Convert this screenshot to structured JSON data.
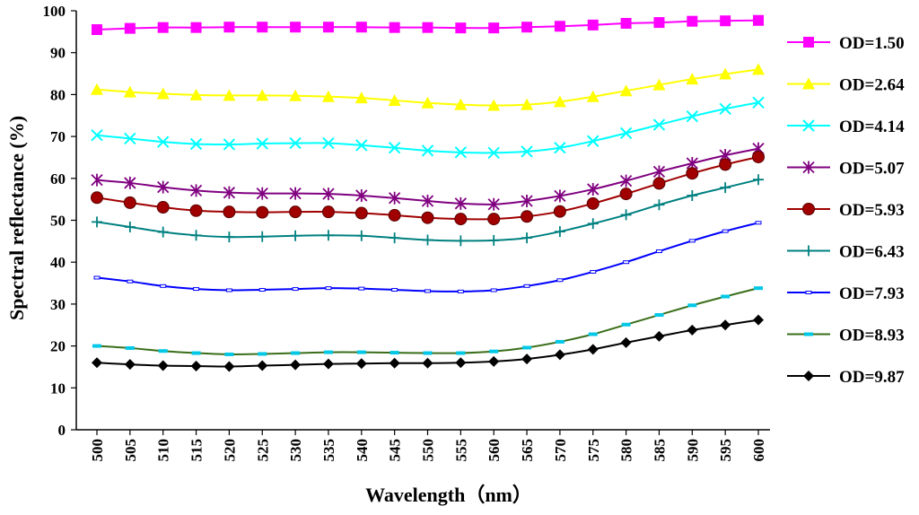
{
  "chart_data": {
    "type": "line",
    "title": "",
    "xlabel": "Wavelength（nm）",
    "ylabel": "Spectral reflectance (%)",
    "xlim": [
      500,
      600
    ],
    "ylim": [
      0,
      100
    ],
    "x": [
      500,
      505,
      510,
      515,
      520,
      525,
      530,
      535,
      540,
      545,
      550,
      555,
      560,
      565,
      570,
      575,
      580,
      585,
      590,
      595,
      600
    ],
    "x_ticks": [
      "500",
      "505",
      "510",
      "515",
      "520",
      "525",
      "530",
      "535",
      "540",
      "545",
      "550",
      "555",
      "560",
      "565",
      "570",
      "575",
      "580",
      "585",
      "590",
      "595",
      "600"
    ],
    "y_ticks": [
      "0",
      "10",
      "20",
      "30",
      "40",
      "50",
      "60",
      "70",
      "80",
      "90",
      "100"
    ],
    "grid": false,
    "legend_position": "right",
    "series": [
      {
        "name": "OD=1.50",
        "color": "#ff00ff",
        "marker": "square",
        "values": [
          95.5,
          95.8,
          96.0,
          96.0,
          96.1,
          96.1,
          96.1,
          96.1,
          96.1,
          96.0,
          96.0,
          95.9,
          95.9,
          96.1,
          96.3,
          96.6,
          97.0,
          97.2,
          97.5,
          97.6,
          97.7
        ]
      },
      {
        "name": "OD=2.64",
        "color": "#ffff00",
        "marker": "triangle",
        "values": [
          81.2,
          80.6,
          80.2,
          79.9,
          79.8,
          79.8,
          79.7,
          79.5,
          79.2,
          78.6,
          78.0,
          77.6,
          77.4,
          77.6,
          78.3,
          79.5,
          80.9,
          82.3,
          83.7,
          84.9,
          86.0
        ]
      },
      {
        "name": "OD=4.14",
        "color": "#00ffff",
        "marker": "x",
        "values": [
          70.3,
          69.5,
          68.7,
          68.2,
          68.1,
          68.3,
          68.4,
          68.4,
          67.9,
          67.3,
          66.6,
          66.2,
          66.1,
          66.4,
          67.3,
          68.9,
          70.8,
          72.8,
          74.8,
          76.6,
          78.1
        ]
      },
      {
        "name": "OD=5.07",
        "color": "#800080",
        "marker": "asterisk",
        "values": [
          59.6,
          58.9,
          57.9,
          57.1,
          56.6,
          56.4,
          56.4,
          56.3,
          55.9,
          55.3,
          54.6,
          54.0,
          53.8,
          54.6,
          55.8,
          57.4,
          59.4,
          61.6,
          63.6,
          65.5,
          67.1
        ]
      },
      {
        "name": "OD=5.93",
        "color": "#a00000",
        "marker": "circle",
        "values": [
          55.4,
          54.2,
          53.1,
          52.3,
          52.0,
          51.9,
          52.0,
          52.0,
          51.7,
          51.2,
          50.6,
          50.3,
          50.3,
          50.9,
          52.1,
          54.0,
          56.3,
          58.8,
          61.2,
          63.3,
          65.1
        ]
      },
      {
        "name": "OD=6.43",
        "color": "#008080",
        "marker": "plus",
        "values": [
          49.6,
          48.4,
          47.2,
          46.4,
          46.0,
          46.1,
          46.3,
          46.4,
          46.3,
          45.8,
          45.3,
          45.1,
          45.2,
          45.8,
          47.3,
          49.2,
          51.3,
          53.7,
          55.9,
          57.8,
          59.7
        ]
      },
      {
        "name": "OD=7.93",
        "color": "#0000ff",
        "marker": "dash",
        "values": [
          36.3,
          35.4,
          34.3,
          33.6,
          33.3,
          33.4,
          33.6,
          33.8,
          33.7,
          33.4,
          33.1,
          33.0,
          33.3,
          34.3,
          35.7,
          37.7,
          40.0,
          42.6,
          45.1,
          47.4,
          49.4
        ]
      },
      {
        "name": "OD=8.93",
        "color": "#3a6e1a",
        "marker": "dash-cyan",
        "values": [
          20.0,
          19.5,
          18.8,
          18.3,
          18.0,
          18.1,
          18.3,
          18.5,
          18.5,
          18.4,
          18.3,
          18.3,
          18.7,
          19.6,
          21.0,
          22.8,
          25.1,
          27.4,
          29.7,
          31.8,
          33.8
        ]
      },
      {
        "name": "OD=9.87",
        "color": "#000000",
        "marker": "diamond",
        "values": [
          16.0,
          15.6,
          15.3,
          15.2,
          15.1,
          15.3,
          15.5,
          15.7,
          15.8,
          15.9,
          15.9,
          16.0,
          16.3,
          16.9,
          17.9,
          19.2,
          20.8,
          22.3,
          23.8,
          25.0,
          26.2
        ]
      }
    ]
  }
}
